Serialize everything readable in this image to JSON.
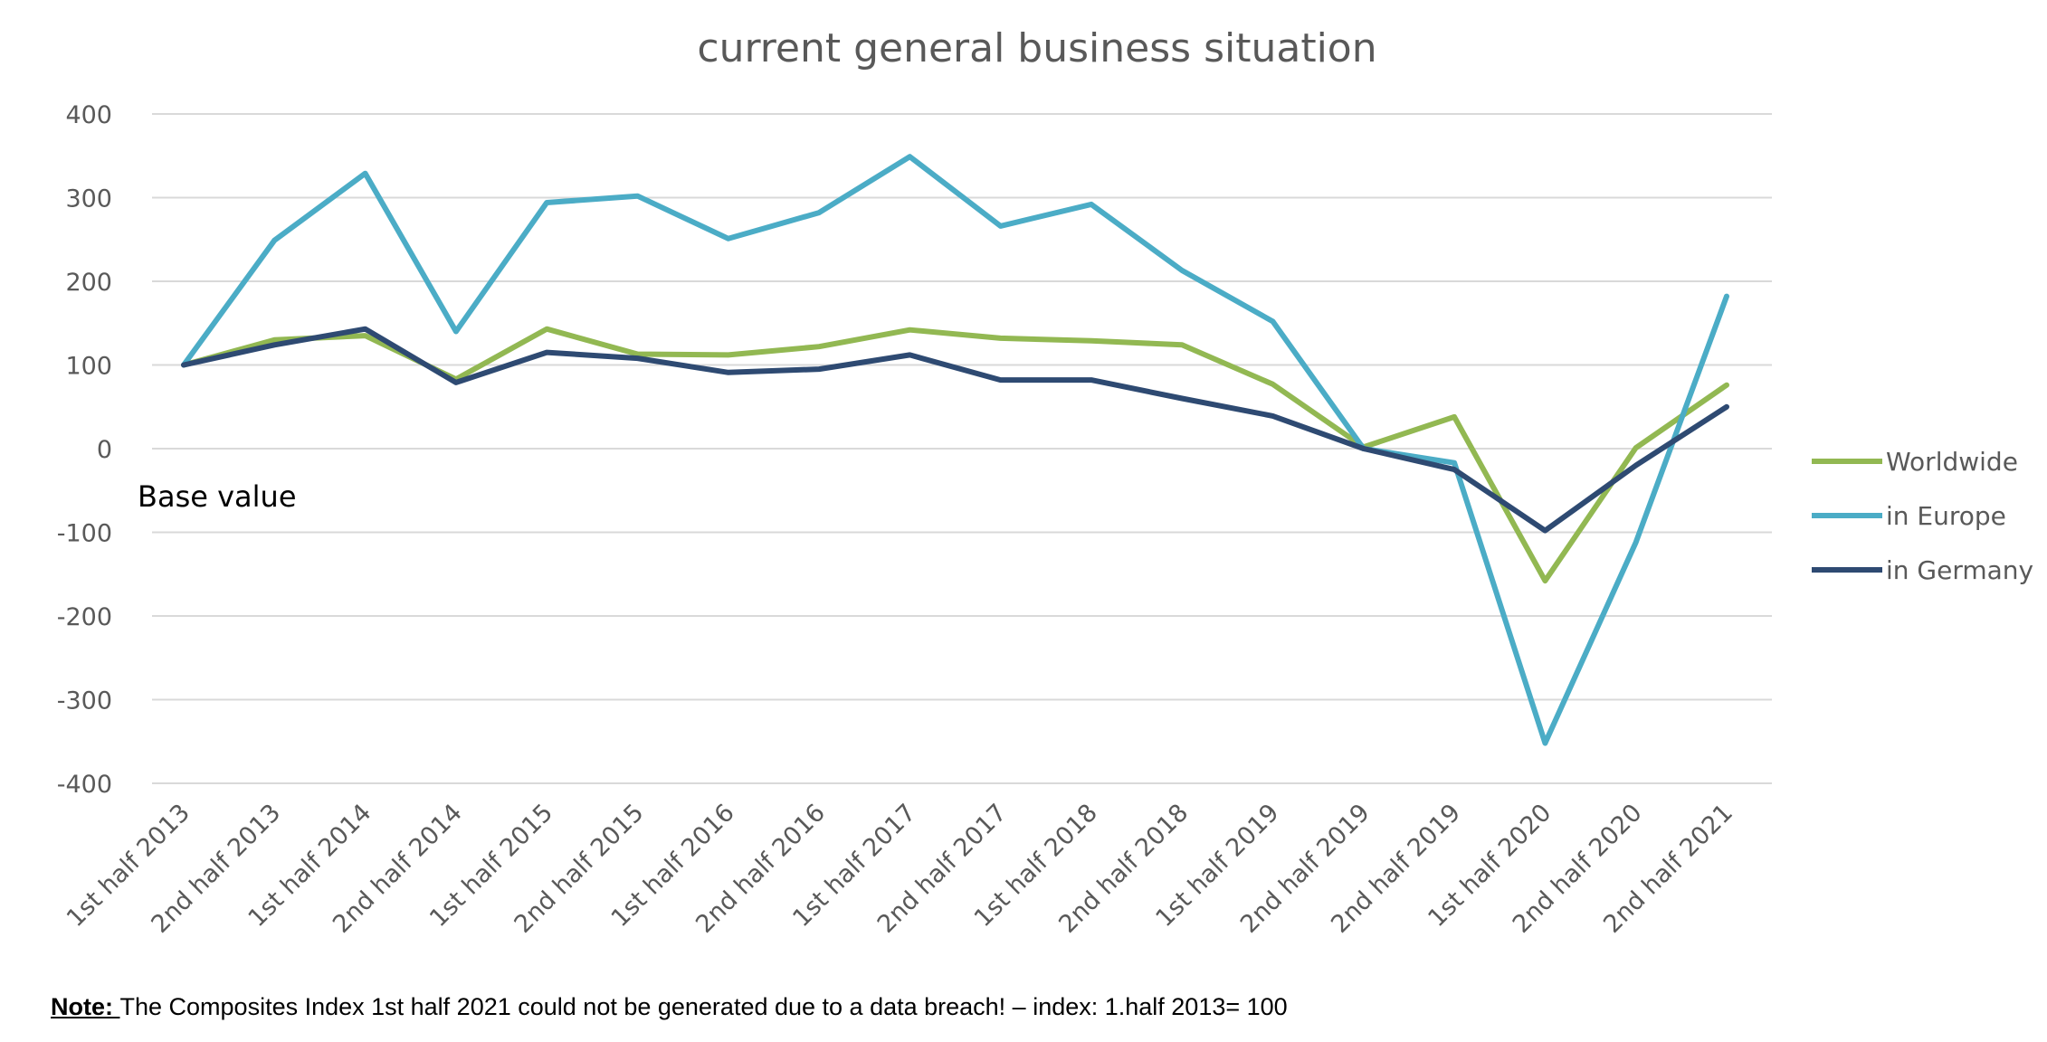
{
  "chart_data": {
    "type": "line",
    "title": "current general business situation",
    "categories": [
      "1st half 2013",
      "2nd half 2013",
      "1st half 2014",
      "2nd half 2014",
      "1st half 2015",
      "2nd half 2015",
      "1st half 2016",
      "2nd half 2016",
      "1st half 2017",
      "2nd half 2017",
      "1st half 2018",
      "2nd half 2018",
      "1st half 2019",
      "2nd half 2019",
      "2nd half 2019",
      "1st half 2020",
      "2nd half 2020",
      "2nd half 2021"
    ],
    "series": [
      {
        "name": "Worldwide",
        "color": "#92b852",
        "values": [
          100,
          130,
          135,
          83,
          143,
          113,
          112,
          122,
          142,
          132,
          129,
          124,
          77,
          2,
          38,
          -158,
          1,
          76
        ]
      },
      {
        "name": "in Europe",
        "color": "#4bacc6",
        "values": [
          100,
          249,
          329,
          140,
          294,
          302,
          251,
          282,
          349,
          266,
          292,
          213,
          152,
          0,
          -17,
          -352,
          -112,
          182
        ]
      },
      {
        "name": "in Germany",
        "color": "#2e4a72",
        "values": [
          100,
          124,
          143,
          79,
          115,
          108,
          91,
          95,
          112,
          82,
          82,
          60,
          39,
          0,
          -25,
          -98,
          -20,
          50
        ]
      }
    ],
    "ylim": [
      -400,
      400
    ],
    "yticks": [
      400,
      300,
      200,
      100,
      0,
      -100,
      -200,
      -300,
      -400
    ],
    "grid": true,
    "legend_position": "right",
    "annotation": "Base value"
  },
  "note": {
    "label": "Note: ",
    "text": "The Composites Index 1st half  2021 could not be generated due to a data breach! – index: 1.half 2013= 100"
  }
}
